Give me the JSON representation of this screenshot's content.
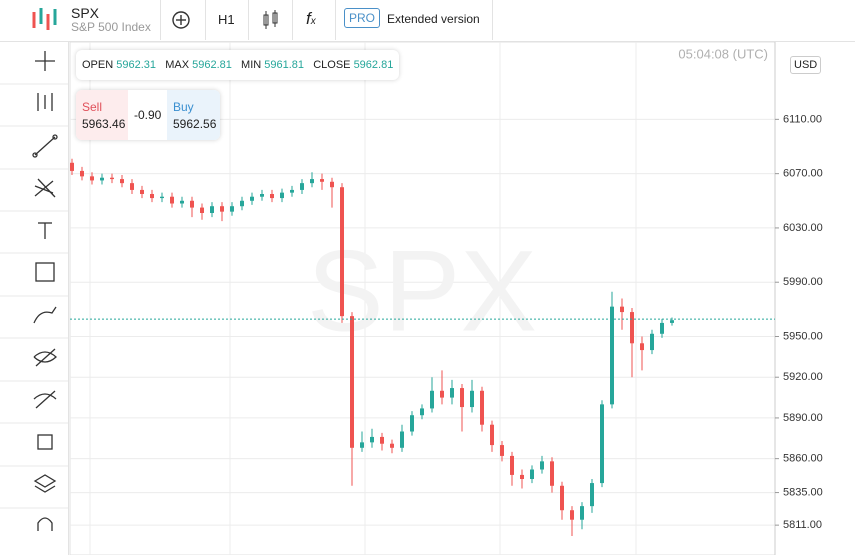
{
  "header": {
    "symbol": "SPX",
    "name": "S&P 500 Index",
    "interval": "H1",
    "pro": "PRO",
    "extended": "Extended version"
  },
  "ohlc": {
    "open_label": "OPEN",
    "open": 5962.31,
    "max_label": "MAX",
    "max": 5962.81,
    "min_label": "MIN",
    "min": 5961.81,
    "close_label": "CLOSE",
    "close": 5962.81
  },
  "trade": {
    "sell_label": "Sell",
    "sell": 5963.46,
    "spread": "-0.90",
    "buy_label": "Buy",
    "buy": 5962.56
  },
  "time": "05:04:08 (UTC)",
  "currency": "USD",
  "watermark": "SPX",
  "chart_data": {
    "type": "candlestick",
    "up_color": "#26a69a",
    "down_color": "#ef5350",
    "grid": true,
    "ylim": [
      5789,
      6167
    ],
    "yticks": [
      {
        "value": 6110,
        "label": "6110.00"
      },
      {
        "value": 6070,
        "label": "6070.00"
      },
      {
        "value": 6030,
        "label": "6030.00"
      },
      {
        "value": 5990,
        "label": "5990.00"
      },
      {
        "value": 5950,
        "label": "5950.00"
      },
      {
        "value": 5920,
        "label": "5920.00"
      },
      {
        "value": 5890,
        "label": "5890.00"
      },
      {
        "value": 5860,
        "label": "5860.00"
      },
      {
        "value": 5835,
        "label": "5835.00"
      },
      {
        "value": 5811,
        "label": "5811.00"
      }
    ],
    "open": [
      6078,
      6072,
      6068,
      6065,
      6067,
      6066,
      6063,
      6058,
      6055,
      6052,
      6053,
      6048,
      6050,
      6045,
      6041,
      6046,
      6042,
      6046,
      6050,
      6053,
      6055,
      6052,
      6056,
      6058,
      6063,
      6066,
      6064,
      6060,
      5965,
      5868,
      5872,
      5876,
      5871,
      5868,
      5880,
      5892,
      5897,
      5910,
      5905,
      5912,
      5898,
      5910,
      5885,
      5870,
      5862,
      5848,
      5845,
      5852,
      5858,
      5840,
      5822,
      5815,
      5825,
      5842,
      5900,
      5972,
      5968,
      5945,
      5940,
      5952,
      5960
    ],
    "high": [
      6081,
      6075,
      6071,
      6070,
      6070,
      6069,
      6066,
      6061,
      6058,
      6056,
      6056,
      6053,
      6053,
      6048,
      6049,
      6049,
      6049,
      6053,
      6056,
      6058,
      6058,
      6059,
      6061,
      6066,
      6071,
      6070,
      6067,
      6063,
      5968,
      5880,
      5882,
      5879,
      5874,
      5885,
      5895,
      5900,
      5920,
      5925,
      5918,
      5915,
      5918,
      5913,
      5888,
      5873,
      5865,
      5852,
      5855,
      5862,
      5861,
      5843,
      5825,
      5828,
      5845,
      5903,
      5983,
      5978,
      5971,
      5950,
      5955,
      5963,
      5964
    ],
    "low": [
      6069,
      6065,
      6062,
      6062,
      6063,
      6060,
      6055,
      6052,
      6049,
      6049,
      6045,
      6045,
      6038,
      6036,
      6038,
      6035,
      6039,
      6043,
      6047,
      6050,
      6049,
      6049,
      6053,
      6055,
      6060,
      6058,
      6045,
      5960,
      5840,
      5865,
      5868,
      5866,
      5864,
      5865,
      5877,
      5889,
      5894,
      5900,
      5900,
      5880,
      5894,
      5880,
      5865,
      5858,
      5840,
      5838,
      5842,
      5849,
      5835,
      5815,
      5803,
      5808,
      5820,
      5839,
      5897,
      5955,
      5920,
      5925,
      5937,
      5949,
      5958
    ],
    "close": [
      6072,
      6068,
      6065,
      6067,
      6066,
      6063,
      6058,
      6055,
      6052,
      6053,
      6048,
      6050,
      6045,
      6041,
      6046,
      6042,
      6046,
      6050,
      6053,
      6055,
      6052,
      6056,
      6058,
      6063,
      6066,
      6064,
      6060,
      5965,
      5868,
      5872,
      5876,
      5871,
      5868,
      5880,
      5892,
      5897,
      5910,
      5905,
      5912,
      5898,
      5910,
      5885,
      5870,
      5862,
      5848,
      5845,
      5852,
      5858,
      5840,
      5822,
      5815,
      5825,
      5842,
      5900,
      5972,
      5968,
      5945,
      5940,
      5952,
      5960,
      5962
    ]
  }
}
